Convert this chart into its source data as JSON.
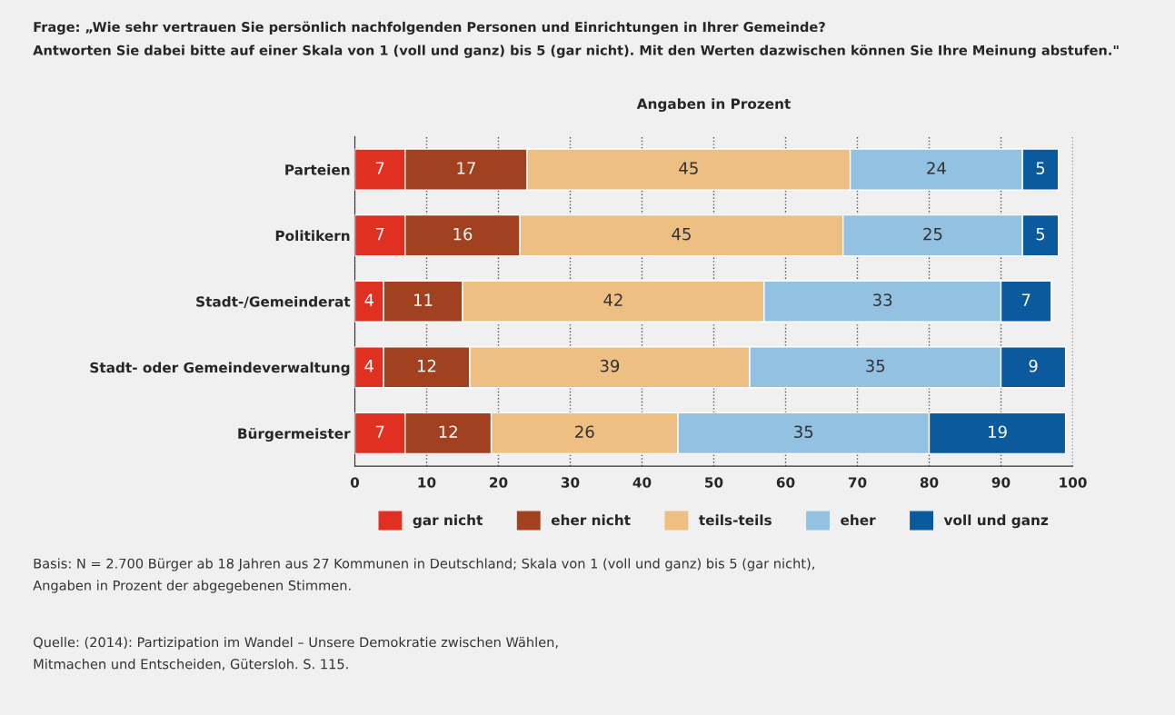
{
  "chart_data": {
    "type": "bar",
    "orientation": "horizontal",
    "stacked": true,
    "data_labels": true,
    "title": "Frage: „Wie sehr vertrauen Sie persönlich nachfolgenden Personen und Einrichtungen in Ihrer Gemeinde?\nAntworten Sie dabei bitte auf einer Skala von 1 (voll und ganz) bis 5 (gar nicht). Mit den Werten dazwischen können Sie Ihre Meinung abstufen.\"",
    "subtitle": "Angaben in Prozent",
    "categories": [
      "Parteien",
      "Politikern",
      "Stadt-/Gemeinderat",
      "Stadt- oder Gemeindeverwaltung",
      "Bürgermeister"
    ],
    "series": [
      {
        "name": "gar nicht",
        "color": "#e03022",
        "values": [
          7,
          7,
          4,
          4,
          7
        ]
      },
      {
        "name": "eher nicht",
        "color": "#a2411f",
        "values": [
          17,
          16,
          11,
          12,
          12
        ]
      },
      {
        "name": "teils-teils",
        "color": "#eebf82",
        "values": [
          45,
          45,
          42,
          39,
          26
        ]
      },
      {
        "name": "eher",
        "color": "#93c1e1",
        "values": [
          24,
          25,
          33,
          35,
          35
        ]
      },
      {
        "name": "voll und ganz",
        "color": "#0b5a9d",
        "values": [
          5,
          5,
          7,
          9,
          19
        ]
      }
    ],
    "xlim": [
      0,
      100
    ],
    "xticks": [
      0,
      10,
      20,
      30,
      40,
      50,
      60,
      70,
      80,
      90,
      100
    ],
    "grid": "x",
    "legend": "bottom",
    "annotations": [
      "Basis: N = 2.700 Bürger ab 18 Jahren aus 27 Kommunen in Deutschland; Skala von 1 (voll und ganz) bis 5 (gar nicht),\nAngaben in Prozent der abgegebenen Stimmen.",
      "Quelle: (2014): Partizipation im Wandel – Unsere Demokratie zwischen Wählen,\nMitmachen und Entscheiden, Gütersloh. S. 115."
    ]
  }
}
